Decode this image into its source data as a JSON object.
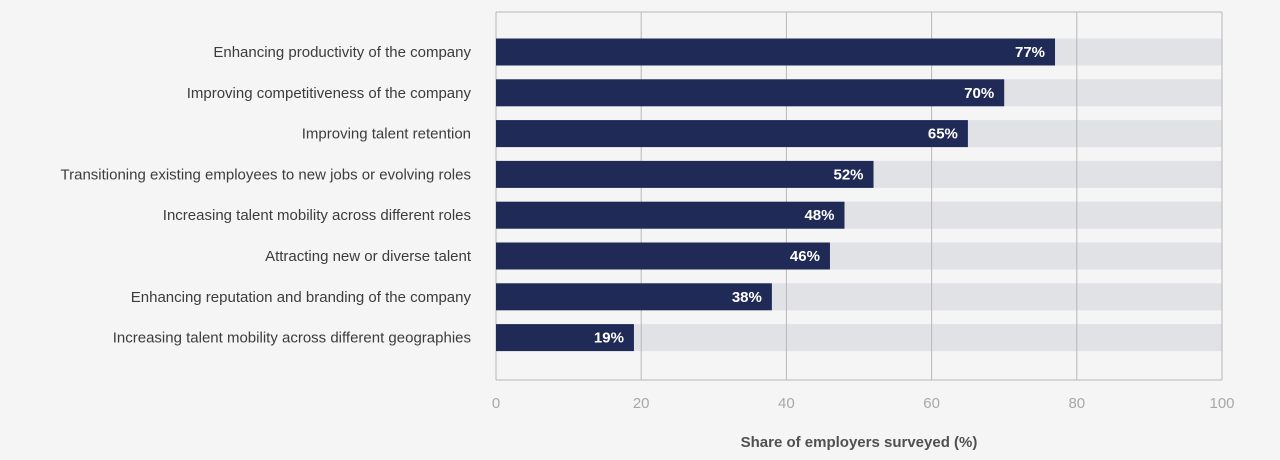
{
  "colors": {
    "background": "#f5f5f5",
    "bar": "#1f2a56",
    "track": "#e1e2e6",
    "grid": "#b8b8b8",
    "category_text": "#3c3c3c",
    "tick_text": "#a8a8a8",
    "bar_label": "#ffffff",
    "axis_title": "#505050"
  },
  "chart_data": {
    "type": "bar",
    "orientation": "horizontal",
    "categories": [
      "Enhancing productivity of the company",
      "Improving competitiveness of the company",
      "Improving talent retention",
      "Transitioning existing employees to new jobs or evolving roles",
      "Increasing talent mobility across different roles",
      "Attracting new or diverse talent",
      "Enhancing reputation and branding of the company",
      "Increasing talent mobility across different geographies"
    ],
    "values": [
      77,
      70,
      65,
      52,
      48,
      46,
      38,
      19
    ],
    "data_labels": [
      "77%",
      "70%",
      "65%",
      "52%",
      "48%",
      "46%",
      "38%",
      "19%"
    ],
    "xlabel": "Share of employers surveyed (%)",
    "xlim": [
      0,
      100
    ],
    "xticks": [
      0,
      20,
      40,
      60,
      80,
      100
    ],
    "xtick_labels": [
      "0",
      "20",
      "40",
      "60",
      "80",
      "100"
    ],
    "grid": true,
    "legend": "none"
  }
}
